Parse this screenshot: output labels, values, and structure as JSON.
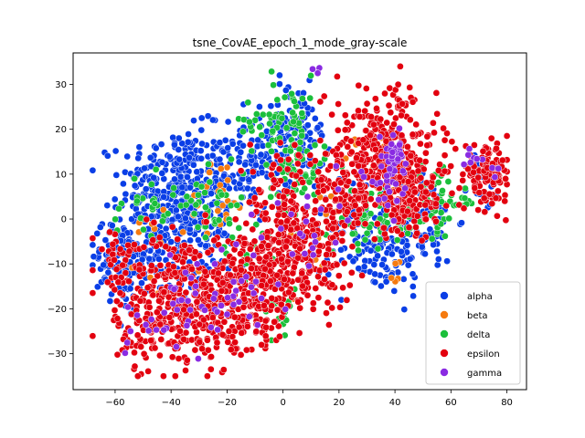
{
  "chart_data": {
    "type": "scatter",
    "title": "tsne_CovAE_epoch_1_mode_gray-scale",
    "xlabel": "",
    "ylabel": "",
    "xlim": [
      -75,
      87
    ],
    "ylim": [
      -38,
      37
    ],
    "xticks": [
      -60,
      -40,
      -20,
      0,
      20,
      40,
      60,
      80
    ],
    "yticks": [
      -30,
      -20,
      -10,
      0,
      10,
      20,
      30
    ],
    "grid": false,
    "legend_position": "lower-right",
    "series": [
      {
        "name": "alpha",
        "color": "#0a3ee6",
        "clusters": [
          {
            "cx": -38,
            "cy": 8,
            "sx": 10,
            "sy": 6,
            "n": 260
          },
          {
            "cx": -45,
            "cy": -6,
            "sx": 10,
            "sy": 6,
            "n": 220
          },
          {
            "cx": -58,
            "cy": -10,
            "sx": 4,
            "sy": 5,
            "n": 70
          },
          {
            "cx": -10,
            "cy": 13,
            "sx": 8,
            "sy": 6,
            "n": 150
          },
          {
            "cx": 5,
            "cy": 20,
            "sx": 6,
            "sy": 5,
            "n": 80
          },
          {
            "cx": 35,
            "cy": -7,
            "sx": 9,
            "sy": 5,
            "n": 120
          },
          {
            "cx": 25,
            "cy": 2,
            "sx": 6,
            "sy": 4,
            "n": 40
          },
          {
            "cx": 50,
            "cy": 0,
            "sx": 6,
            "sy": 5,
            "n": 60
          },
          {
            "cx": 72,
            "cy": 8,
            "sx": 3,
            "sy": 3,
            "n": 20
          },
          {
            "cx": -25,
            "cy": -3,
            "sx": 5,
            "sy": 5,
            "n": 40
          }
        ]
      },
      {
        "name": "beta",
        "color": "#f57a0f",
        "clusters": [
          {
            "cx": -22,
            "cy": 6,
            "sx": 4,
            "sy": 4,
            "n": 20
          },
          {
            "cx": 35,
            "cy": 10,
            "sx": 8,
            "sy": 5,
            "n": 25
          },
          {
            "cx": 10,
            "cy": -5,
            "sx": 10,
            "sy": 6,
            "n": 15
          },
          {
            "cx": -40,
            "cy": -5,
            "sx": 8,
            "sy": 6,
            "n": 15
          },
          {
            "cx": 40,
            "cy": -12,
            "sx": 3,
            "sy": 2,
            "n": 5
          }
        ]
      },
      {
        "name": "delta",
        "color": "#1bbf3b",
        "clusters": [
          {
            "cx": 0,
            "cy": 22,
            "sx": 7,
            "sy": 5,
            "n": 70
          },
          {
            "cx": 5,
            "cy": 10,
            "sx": 5,
            "sy": 4,
            "n": 50
          },
          {
            "cx": -25,
            "cy": 3,
            "sx": 6,
            "sy": 4,
            "n": 40
          },
          {
            "cx": 35,
            "cy": 0,
            "sx": 10,
            "sy": 3,
            "n": 80
          },
          {
            "cx": 55,
            "cy": 5,
            "sx": 4,
            "sy": 4,
            "n": 30
          },
          {
            "cx": -50,
            "cy": 2,
            "sx": 6,
            "sy": 5,
            "n": 25
          },
          {
            "cx": 0,
            "cy": -20,
            "sx": 3,
            "sy": 4,
            "n": 15
          },
          {
            "cx": -10,
            "cy": -5,
            "sx": 6,
            "sy": 5,
            "n": 20
          },
          {
            "cx": 65,
            "cy": 5,
            "sx": 2,
            "sy": 3,
            "n": 10
          }
        ]
      },
      {
        "name": "epsilon",
        "color": "#e3000f",
        "clusters": [
          {
            "cx": -35,
            "cy": -15,
            "sx": 12,
            "sy": 6,
            "n": 300
          },
          {
            "cx": -40,
            "cy": -25,
            "sx": 10,
            "sy": 5,
            "n": 150
          },
          {
            "cx": 5,
            "cy": -8,
            "sx": 10,
            "sy": 6,
            "n": 260
          },
          {
            "cx": -10,
            "cy": -15,
            "sx": 8,
            "sy": 6,
            "n": 150
          },
          {
            "cx": 35,
            "cy": 15,
            "sx": 10,
            "sy": 7,
            "n": 260
          },
          {
            "cx": 45,
            "cy": 6,
            "sx": 8,
            "sy": 5,
            "n": 180
          },
          {
            "cx": 73,
            "cy": 10,
            "sx": 4,
            "sy": 3,
            "n": 120
          },
          {
            "cx": 20,
            "cy": 5,
            "sx": 6,
            "sy": 5,
            "n": 100
          },
          {
            "cx": -15,
            "cy": -25,
            "sx": 6,
            "sy": 4,
            "n": 40
          },
          {
            "cx": 0,
            "cy": 5,
            "sx": 6,
            "sy": 5,
            "n": 60
          },
          {
            "cx": -60,
            "cy": -8,
            "sx": 3,
            "sy": 3,
            "n": 30
          }
        ]
      },
      {
        "name": "gamma",
        "color": "#8a2be2",
        "clusters": [
          {
            "cx": 38,
            "cy": 10,
            "sx": 4,
            "sy": 4,
            "n": 40
          },
          {
            "cx": 40,
            "cy": 15,
            "sx": 2,
            "sy": 2,
            "n": 15
          },
          {
            "cx": -20,
            "cy": -18,
            "sx": 8,
            "sy": 4,
            "n": 30
          },
          {
            "cx": 10,
            "cy": 0,
            "sx": 8,
            "sy": 6,
            "n": 25
          },
          {
            "cx": -35,
            "cy": -20,
            "sx": 6,
            "sy": 4,
            "n": 20
          },
          {
            "cx": 70,
            "cy": 12,
            "sx": 3,
            "sy": 2,
            "n": 10
          },
          {
            "cx": 12,
            "cy": 33,
            "sx": 1,
            "sy": 0.5,
            "n": 3
          },
          {
            "cx": -50,
            "cy": -25,
            "sx": 4,
            "sy": 3,
            "n": 10
          }
        ]
      }
    ]
  }
}
